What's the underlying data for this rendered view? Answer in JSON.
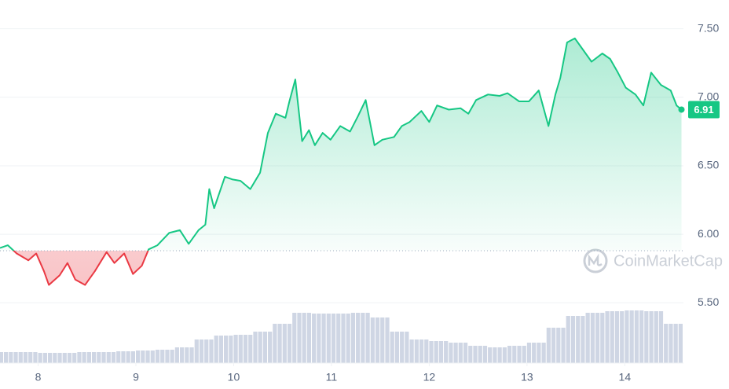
{
  "chart_data": {
    "type": "line",
    "watermark": "CoinMarketCap",
    "x": [
      7.61,
      7.69,
      7.78,
      7.9,
      7.98,
      8.06,
      8.11,
      8.22,
      8.3,
      8.38,
      8.48,
      8.58,
      8.7,
      8.78,
      8.88,
      8.97,
      9.06,
      9.13,
      9.22,
      9.34,
      9.45,
      9.54,
      9.64,
      9.71,
      9.75,
      9.8,
      9.91,
      9.99,
      10.07,
      10.17,
      10.27,
      10.35,
      10.43,
      10.53,
      10.57,
      10.63,
      10.7,
      10.77,
      10.83,
      10.91,
      10.99,
      11.09,
      11.19,
      11.27,
      11.35,
      11.44,
      11.52,
      11.64,
      11.72,
      11.8,
      11.92,
      12.0,
      12.08,
      12.2,
      12.32,
      12.4,
      12.48,
      12.6,
      12.72,
      12.8,
      12.92,
      13.02,
      13.12,
      13.22,
      13.29,
      13.34,
      13.41,
      13.49,
      13.58,
      13.66,
      13.77,
      13.85,
      13.93,
      14.01,
      14.11,
      14.19,
      14.27,
      14.37,
      14.47,
      14.53,
      14.58
    ],
    "values": [
      5.9,
      5.92,
      5.86,
      5.81,
      5.86,
      5.73,
      5.63,
      5.7,
      5.79,
      5.67,
      5.63,
      5.73,
      5.87,
      5.79,
      5.86,
      5.71,
      5.77,
      5.89,
      5.92,
      6.01,
      6.03,
      5.93,
      6.03,
      6.07,
      6.33,
      6.19,
      6.42,
      6.4,
      6.39,
      6.33,
      6.45,
      6.74,
      6.88,
      6.85,
      6.97,
      7.13,
      6.68,
      6.76,
      6.65,
      6.74,
      6.69,
      6.79,
      6.75,
      6.86,
      6.98,
      6.65,
      6.69,
      6.71,
      6.79,
      6.82,
      6.9,
      6.82,
      6.94,
      6.91,
      6.92,
      6.88,
      6.98,
      7.02,
      7.01,
      7.03,
      6.97,
      6.97,
      7.05,
      6.79,
      7.02,
      7.14,
      7.4,
      7.43,
      7.34,
      7.26,
      7.32,
      7.28,
      7.18,
      7.07,
      7.02,
      6.94,
      7.18,
      7.09,
      7.05,
      6.94,
      6.91
    ],
    "current_price": "6.91",
    "baseline": 5.88,
    "up_color": "#16c784",
    "down_color": "#ea3943",
    "xlim": [
      7.61,
      14.6
    ],
    "xticks": [
      8,
      9,
      10,
      11,
      12,
      13,
      14
    ],
    "ylim": [
      5.06,
      7.71
    ],
    "yticks": [
      {
        "value": 5.5,
        "label": "5.50"
      },
      {
        "value": 6,
        "label": "6.00"
      },
      {
        "value": 6.5,
        "label": "6.50"
      },
      {
        "value": 7,
        "label": "7.00"
      },
      {
        "value": 7.5,
        "label": "7.50"
      }
    ],
    "grid": true,
    "volume": {
      "x": [
        7.7,
        7.9,
        8.1,
        8.3,
        8.5,
        8.7,
        8.9,
        9.1,
        9.3,
        9.5,
        9.7,
        9.9,
        10.1,
        10.3,
        10.5,
        10.7,
        10.9,
        11.1,
        11.3,
        11.5,
        11.7,
        11.9,
        12.1,
        12.3,
        12.5,
        12.7,
        12.9,
        13.1,
        13.3,
        13.5,
        13.7,
        13.9,
        14.1,
        14.3,
        14.5
      ],
      "values": [
        14,
        14,
        13,
        13,
        14,
        14,
        15,
        16,
        17,
        20,
        30,
        35,
        36,
        40,
        50,
        64,
        63,
        63,
        64,
        58,
        40,
        30,
        28,
        26,
        22,
        20,
        22,
        26,
        45,
        60,
        64,
        66,
        67,
        66,
        50
      ],
      "color": "#cfd6e4",
      "y2lim": [
        0,
        100
      ]
    }
  }
}
